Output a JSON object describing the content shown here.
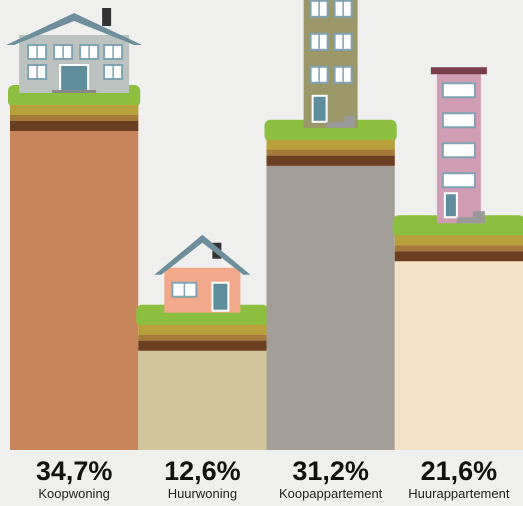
{
  "chart_data": {
    "type": "bar",
    "categories": [
      "Koopwoning",
      "Huurwoning",
      "Koopappartement",
      "Huurappartement"
    ],
    "values": [
      34.7,
      12.6,
      31.2,
      21.6
    ],
    "value_labels": [
      "34,7%",
      "12,6%",
      "31,2%",
      "21,6%"
    ],
    "colors": [
      "#c8845a",
      "#d2c49b",
      "#a39f98",
      "#f4e0c6"
    ]
  }
}
